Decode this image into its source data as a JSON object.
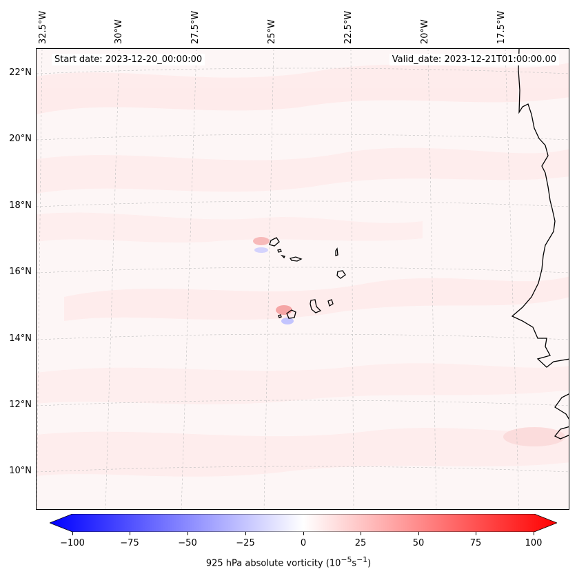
{
  "map": {
    "lon_labels": [
      "32.5°W",
      "30°W",
      "27.5°W",
      "25°W",
      "22.5°W",
      "20°W",
      "17.5°W"
    ],
    "lat_labels": [
      "22°N",
      "20°N",
      "18°N",
      "16°N",
      "14°N",
      "12°N",
      "10°N"
    ],
    "start_date": "Start date: 2023-12-20_00:00:00",
    "valid_date": "Valid_date: 2023-12-21T01:00:00.00",
    "field": "925 hPa absolute vorticity",
    "background_color": "#fdf6f6",
    "coastline_color": "#000000",
    "gridline_color": "#bdbdbd"
  },
  "colorbar": {
    "ticks": [
      "−100",
      "−75",
      "−50",
      "−25",
      "0",
      "25",
      "50",
      "75",
      "100"
    ],
    "label_prefix": "925 hPa absolute vorticity (10",
    "label_exp1": "−5",
    "label_mid": "s",
    "label_exp2": "−1",
    "label_suffix": ")",
    "min": -100,
    "max": 100,
    "low_color": "#0000ff",
    "mid_color": "#ffffff",
    "high_color": "#ff0000"
  }
}
